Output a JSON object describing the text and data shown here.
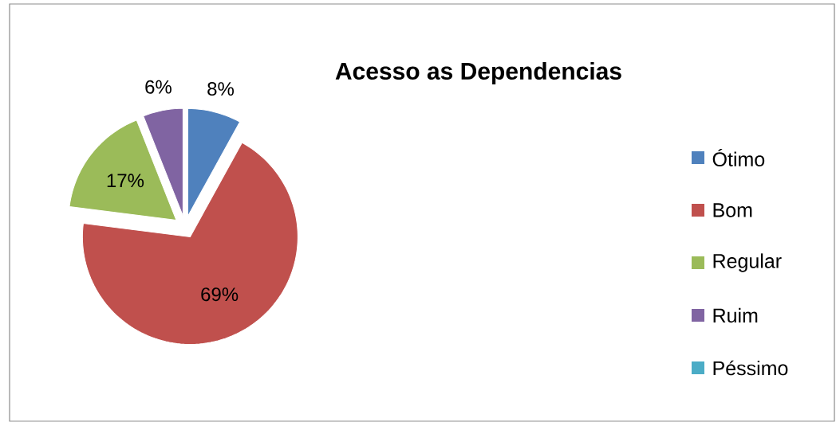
{
  "chart_data": {
    "type": "pie",
    "title": "Acesso as Dependencias",
    "categories": [
      "Ótimo",
      "Bom",
      "Regular",
      "Ruim",
      "Péssimo"
    ],
    "values": [
      8,
      69,
      17,
      6,
      0
    ],
    "colors": [
      "#4f81bd",
      "#c0504d",
      "#9bbb59",
      "#8064a2",
      "#4bacc6"
    ],
    "value_labels": [
      "8%",
      "69%",
      "17%",
      "6%",
      null
    ],
    "legend": "right"
  }
}
